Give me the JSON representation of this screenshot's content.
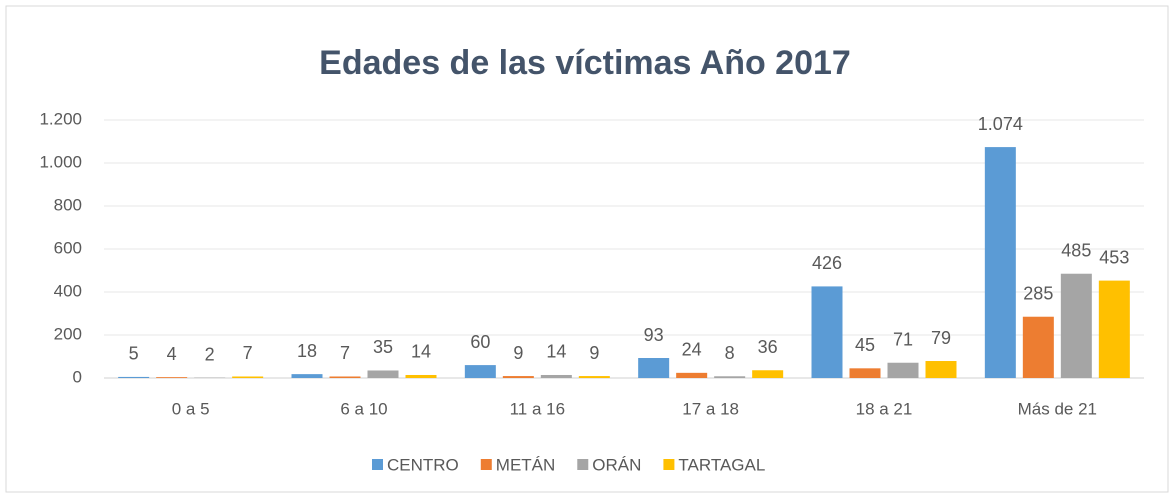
{
  "chart_data": {
    "type": "bar",
    "title": "Edades de las víctimas Año 2017",
    "categories": [
      "0 a 5",
      "6 a 10",
      "11 a 16",
      "17 a 18",
      "18 a 21",
      "Más de 21"
    ],
    "series": [
      {
        "name": "CENTRO",
        "color": "#5b9bd5",
        "values": [
          5,
          18,
          60,
          93,
          426,
          1074
        ],
        "value_labels": [
          "5",
          "18",
          "60",
          "93",
          "426",
          "1.074"
        ]
      },
      {
        "name": "METÁN",
        "color": "#ed7d31",
        "values": [
          4,
          7,
          9,
          24,
          45,
          285
        ]
      },
      {
        "name": "ORÁN",
        "color": "#a5a5a5",
        "values": [
          2,
          35,
          14,
          8,
          71,
          485
        ]
      },
      {
        "name": "TARTAGAL",
        "color": "#ffc000",
        "values": [
          7,
          14,
          9,
          36,
          79,
          453
        ]
      }
    ],
    "ylim": [
      0,
      1200
    ],
    "yticks": [
      0,
      200,
      400,
      600,
      800,
      {
        "value": 1000,
        "label": "1.000"
      },
      {
        "value": 1200,
        "label": "1.200"
      }
    ],
    "grid": true,
    "legend": "bottom"
  }
}
